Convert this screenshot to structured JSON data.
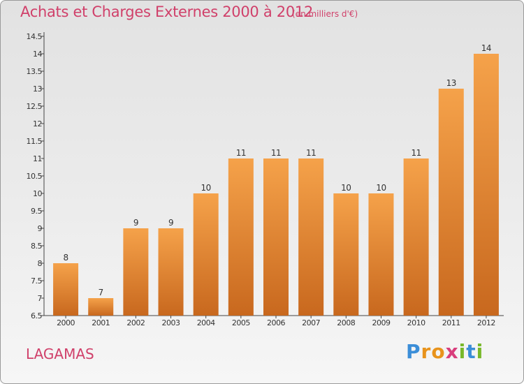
{
  "header": {
    "title": "Achats et Charges Externes 2000 à 2012",
    "unit": "(en milliers d'€)"
  },
  "footer": {
    "commune": "LAGAMAS",
    "brand": "Proxiti"
  },
  "colors": {
    "title": "#d0406a",
    "bar_light": "#f5a24a",
    "bar_dark": "#c8681e",
    "axis": "#444444"
  },
  "chart_data": {
    "type": "bar",
    "title": "Achats et Charges Externes 2000 à 2012",
    "subtitle": "(en milliers d'€)",
    "categories": [
      "2000",
      "2001",
      "2002",
      "2003",
      "2004",
      "2005",
      "2006",
      "2007",
      "2008",
      "2009",
      "2010",
      "2011",
      "2012"
    ],
    "values": [
      8,
      7,
      9,
      9,
      10,
      11,
      11,
      11,
      10,
      10,
      11,
      13,
      14
    ],
    "ylim": [
      6.5,
      14.5
    ],
    "yticks": [
      6.5,
      7,
      7.5,
      8,
      8.5,
      9,
      9.5,
      10,
      10.5,
      11,
      11.5,
      12,
      12.5,
      13,
      13.5,
      14,
      14.5
    ],
    "data_labels": [
      "8",
      "7",
      "9",
      "9",
      "10",
      "11",
      "11",
      "11",
      "10",
      "10",
      "11",
      "13",
      "14"
    ],
    "grid": false,
    "legend": "none"
  }
}
